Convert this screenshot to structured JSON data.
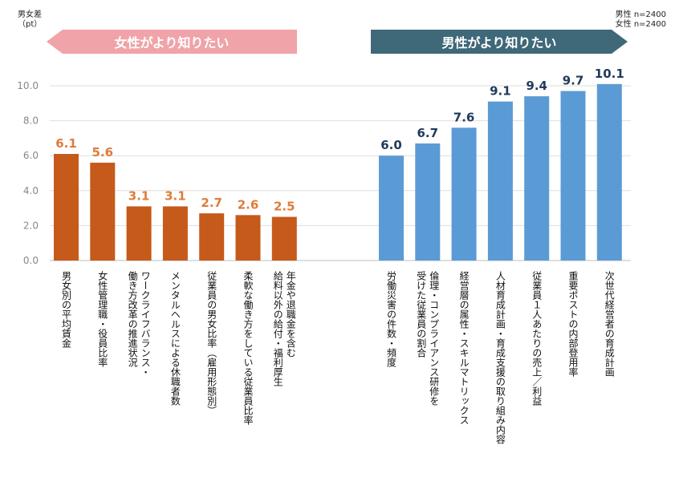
{
  "chart_data": {
    "type": "bar",
    "ylabel": "男女差\n（pt）",
    "ylim": [
      0,
      10
    ],
    "yticks": [
      "0.0",
      "2.0",
      "4.0",
      "6.0",
      "8.0",
      "10.0"
    ],
    "grid": true,
    "legend": {
      "male": "男性 n=2400",
      "female": "女性 n=2400"
    },
    "groups": [
      {
        "name": "女性がより知りたい",
        "color": "#c55a1a",
        "banner_color": "#f0a3a8",
        "categories": [
          [
            "男女別の平均賃金"
          ],
          [
            "女性管理職・役員比率"
          ],
          [
            "ワークライフバランス・",
            "働き方改革の推進状況"
          ],
          [
            "メンタルヘルスによる休職者数"
          ],
          [
            "従業員の男女比率（雇用形態別）"
          ],
          [
            "柔軟な働き方をしている従業員比率"
          ],
          [
            "年金や退職金を含む",
            "給料以外の給付・福利厚生"
          ]
        ],
        "values": [
          6.1,
          5.6,
          3.1,
          3.1,
          2.7,
          2.6,
          2.5
        ],
        "value_labels": [
          "6.1",
          "5.6",
          "3.1",
          "3.1",
          "2.7",
          "2.6",
          "2.5"
        ]
      },
      {
        "name": "男性がより知りたい",
        "color": "#5b9bd5",
        "banner_color": "#3f6878",
        "categories": [
          [
            "労働災害の件数・頻度"
          ],
          [
            "倫理・コンプライアンス研修を",
            "受けた従業員の割合"
          ],
          [
            "経営層の属性・スキルマトリックス"
          ],
          [
            "人材育成計画・育成支援の取り組み内容"
          ],
          [
            "従業員１人あたりの売上／利益"
          ],
          [
            "重要ポストの内部登用率"
          ],
          [
            "次世代経営者の育成計画"
          ]
        ],
        "values": [
          6.0,
          6.7,
          7.6,
          9.1,
          9.4,
          9.7,
          10.1
        ],
        "value_labels": [
          "6.0",
          "6.7",
          "7.6",
          "9.1",
          "9.4",
          "9.7",
          "10.1"
        ]
      }
    ]
  }
}
